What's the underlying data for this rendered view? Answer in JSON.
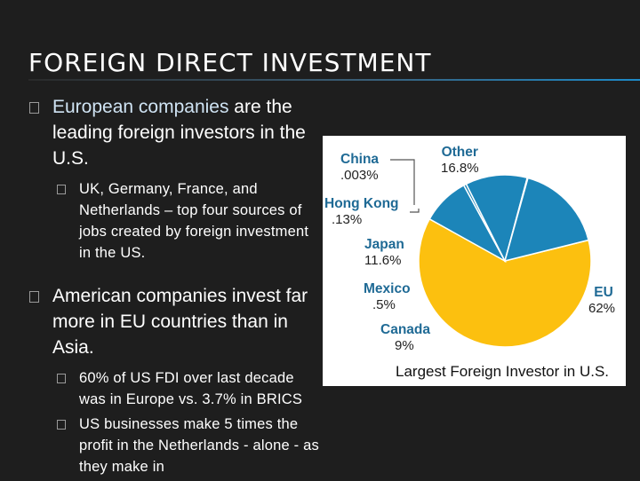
{
  "slide": {
    "title": "FOREIGN DIRECT INVESTMENT"
  },
  "bullets": [
    {
      "text_highlight": "European companies",
      "text_rest": " are the leading foreign investors in the U.S.",
      "subs": [
        "UK, Germany, France, and Netherlands – top four sources of jobs created by foreign investment in the US."
      ]
    },
    {
      "text": "American companies invest far more in EU countries than in Asia.",
      "subs": [
        "60% of US FDI over last decade was in Europe vs. 3.7% in BRICS",
        "US businesses make 5 times the profit in the Netherlands - alone - as they make in"
      ]
    }
  ],
  "chart_data": {
    "type": "pie",
    "title": "Largest Foreign Investor in U.S.",
    "slices": [
      {
        "name": "EU",
        "label": "62%",
        "value": 62,
        "color": "#fcc00f"
      },
      {
        "name": "Canada",
        "label": "9%",
        "value": 9,
        "color": "#1c85b9"
      },
      {
        "name": "Mexico",
        "label": ".5%",
        "value": 0.5,
        "color": "#1c85b9"
      },
      {
        "name": "Japan",
        "label": "11.6%",
        "value": 11.6,
        "color": "#1c85b9"
      },
      {
        "name": "Hong Kong",
        "label": ".13%",
        "value": 0.13,
        "color": "#1c85b9"
      },
      {
        "name": "China",
        "label": ".003%",
        "value": 0.003,
        "color": "#1c85b9"
      },
      {
        "name": "Other",
        "label": "16.8%",
        "value": 16.8,
        "color": "#1c85b9"
      }
    ]
  }
}
